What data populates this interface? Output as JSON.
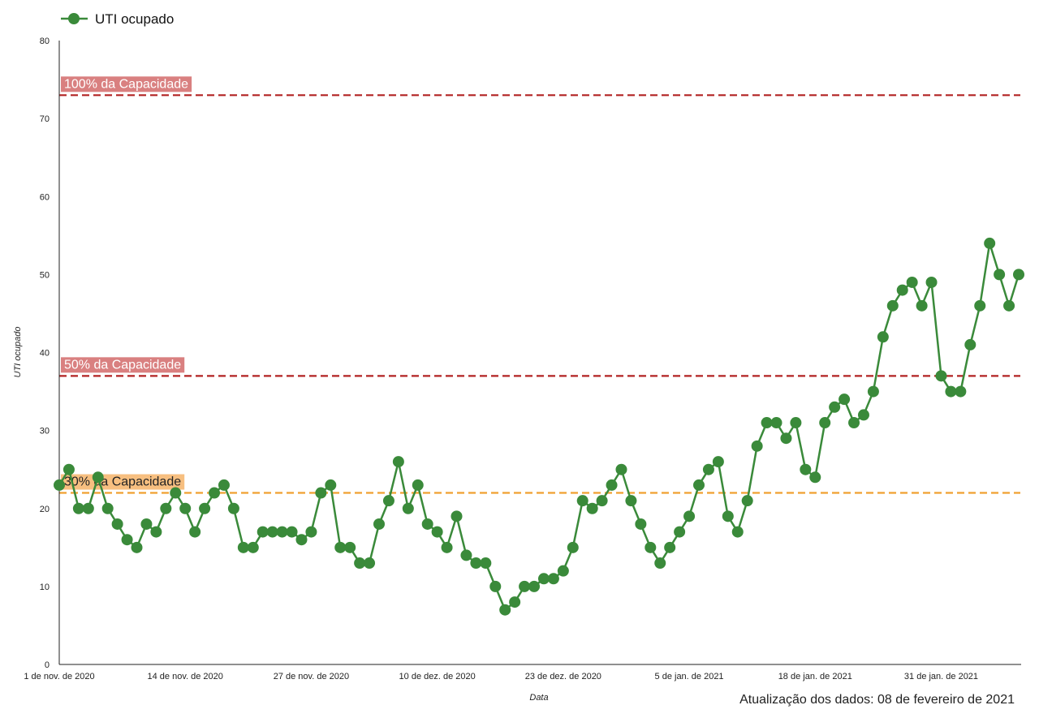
{
  "chart_data": {
    "type": "line",
    "xlabel": "Data",
    "ylabel": "UTI ocupado",
    "ylim": [
      0,
      80
    ],
    "yticks": [
      0,
      10,
      20,
      30,
      40,
      50,
      60,
      70,
      80
    ],
    "x_range": [
      1,
      100
    ],
    "xticks": [
      {
        "x": 1,
        "label": "1 de nov. de 2020"
      },
      {
        "x": 14,
        "label": "14 de nov. de 2020"
      },
      {
        "x": 27,
        "label": "27 de nov. de 2020"
      },
      {
        "x": 40,
        "label": "10 de dez. de 2020"
      },
      {
        "x": 53,
        "label": "23 de dez. de 2020"
      },
      {
        "x": 66,
        "label": "5 de jan. de 2021"
      },
      {
        "x": 79,
        "label": "18 de jan. de 2021"
      },
      {
        "x": 92,
        "label": "31 de jan. de 2021"
      }
    ],
    "grid": false,
    "legend_position": "top-left",
    "series": [
      {
        "name": "UTI ocupado",
        "color": "#3a8a3a",
        "values": [
          23,
          25,
          20,
          20,
          24,
          20,
          18,
          16,
          15,
          18,
          17,
          20,
          22,
          20,
          17,
          20,
          22,
          23,
          20,
          15,
          15,
          17,
          17,
          17,
          17,
          16,
          17,
          22,
          23,
          15,
          15,
          13,
          13,
          18,
          21,
          26,
          20,
          23,
          18,
          17,
          15,
          19,
          14,
          13,
          13,
          10,
          7,
          8,
          10,
          10,
          11,
          11,
          12,
          15,
          21,
          20,
          21,
          23,
          25,
          21,
          18,
          15,
          13,
          15,
          17,
          19,
          23,
          25,
          26,
          19,
          17,
          21,
          28,
          31,
          31,
          29,
          31,
          25,
          24,
          31,
          33,
          34,
          31,
          32,
          35,
          42,
          46,
          48,
          49,
          46,
          49,
          37,
          35,
          35,
          41,
          46,
          54,
          50,
          46,
          50
        ]
      }
    ],
    "reference_lines": [
      {
        "label": "100% da Capacidade",
        "value": 73,
        "color": "#b22222",
        "label_bg": "#d98080",
        "label_color": "#ffffff"
      },
      {
        "label": "50% da Capacidade",
        "value": 37,
        "color": "#b22222",
        "label_bg": "#d98080",
        "label_color": "#ffffff"
      },
      {
        "label": "30% da Capacidade",
        "value": 22,
        "color": "#f0a030",
        "label_bg": "#f7bf80",
        "label_color": "#222222"
      }
    ]
  },
  "update_note": "Atualização dos dados: 08 de fevereiro de 2021"
}
